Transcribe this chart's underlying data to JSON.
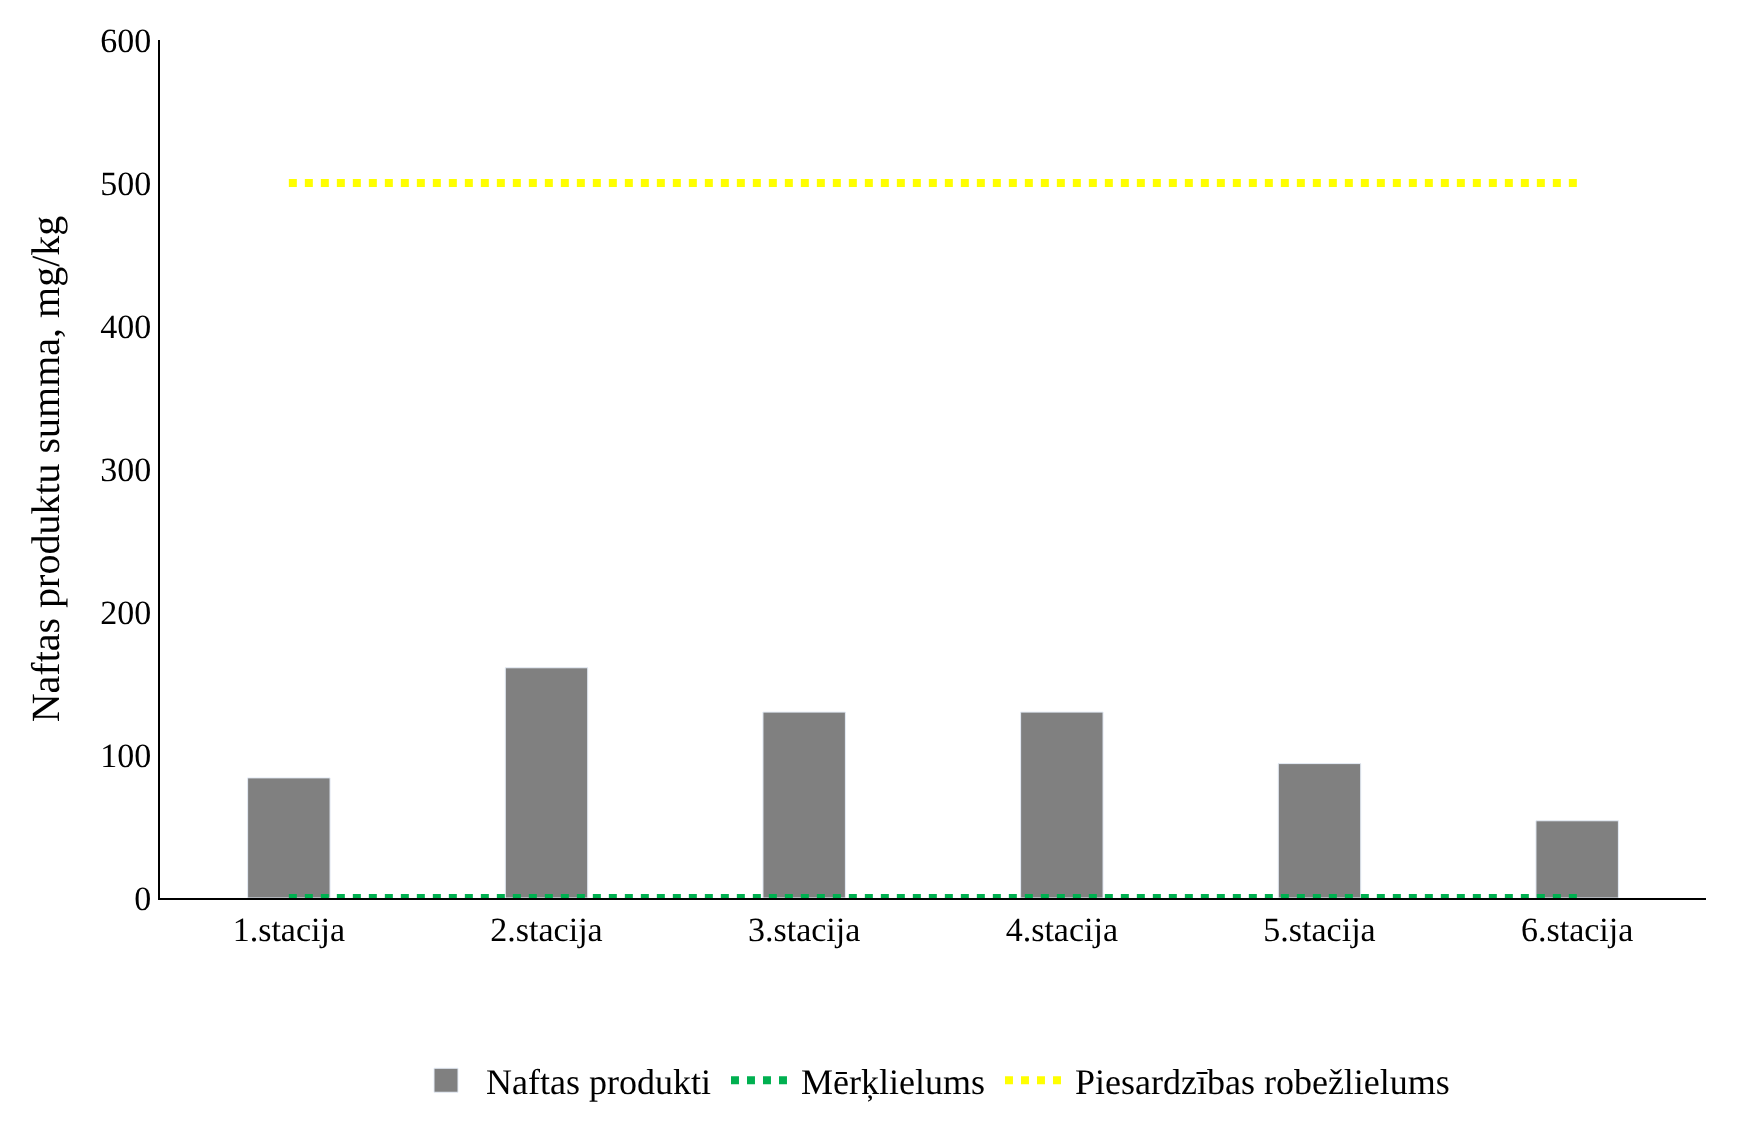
{
  "chart_data": {
    "type": "bar",
    "ylabel": "Naftas produktu summa, mg/kg",
    "categories": [
      "1.stacija",
      "2.stacija",
      "3.stacija",
      "4.stacija",
      "5.stacija",
      "6.stacija"
    ],
    "series": [
      {
        "name": "Naftas produkti",
        "color": "#808080",
        "values": [
          84,
          161,
          130,
          130,
          94,
          54
        ]
      },
      {
        "name": "Mērķlielums",
        "type": "line",
        "color": "#00b050",
        "line_style": "dotted",
        "values": [
          0,
          0,
          0,
          0,
          0,
          0
        ]
      },
      {
        "name": "Piesardzības robežlielums",
        "type": "line",
        "color": "#ffff00",
        "line_style": "dotted",
        "values": [
          500,
          500,
          500,
          500,
          500,
          500
        ]
      }
    ],
    "ylim": [
      0,
      600
    ],
    "yticks": [
      0,
      100,
      200,
      300,
      400,
      500,
      600
    ],
    "legend": "bottom"
  }
}
